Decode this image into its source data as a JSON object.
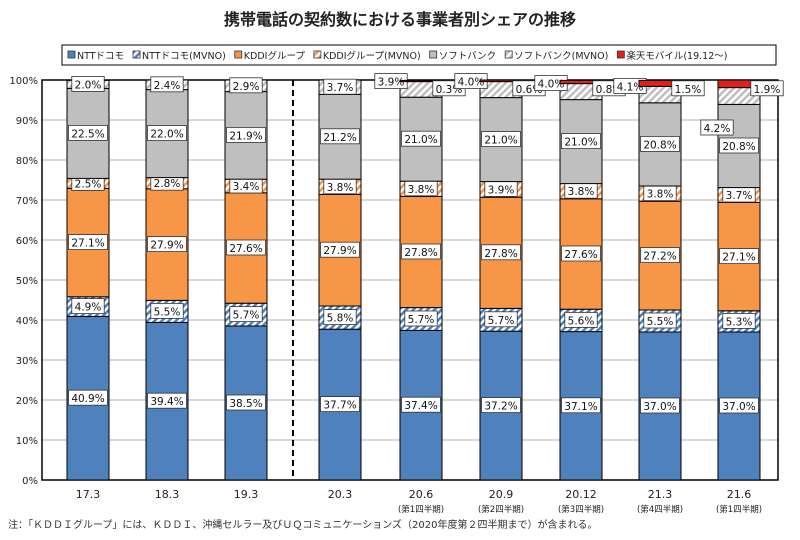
{
  "chart_data": {
    "type": "bar",
    "stacked": true,
    "title": "携帯電話の契約数における事業者別シェアの推移",
    "categories": [
      "17.3",
      "18.3",
      "19.3",
      "20.3",
      "20.6",
      "20.9",
      "20.12",
      "21.3",
      "21.6"
    ],
    "sub_labels": [
      "",
      "",
      "",
      "",
      "(第1四半期)",
      "(第2四半期)",
      "(第3四半期)",
      "(第4四半期)",
      "(第1四半期)"
    ],
    "ylim": [
      0,
      100
    ],
    "yticks": [
      "0%",
      "10%",
      "20%",
      "30%",
      "40%",
      "50%",
      "60%",
      "70%",
      "80%",
      "90%",
      "100%"
    ],
    "grid": true,
    "legend_position": "top",
    "series": [
      {
        "name": "NTTドコモ",
        "color": "#4F81BD",
        "values": [
          40.9,
          39.4,
          38.5,
          37.7,
          37.4,
          37.2,
          37.1,
          37.0,
          37.0
        ]
      },
      {
        "name": "NTTドコモ(MVNO)",
        "color": "#4F81BD",
        "hatched": true,
        "values": [
          4.9,
          5.5,
          5.7,
          5.8,
          5.7,
          5.7,
          5.6,
          5.5,
          5.3
        ]
      },
      {
        "name": "KDDIグループ",
        "color": "#F79646",
        "values": [
          27.1,
          27.9,
          27.6,
          27.9,
          27.8,
          27.8,
          27.6,
          27.2,
          27.1
        ]
      },
      {
        "name": "KDDIグループ(MVNO)",
        "color": "#F79646",
        "hatched": true,
        "values": [
          2.5,
          2.8,
          3.4,
          3.8,
          3.8,
          3.9,
          3.8,
          3.8,
          3.7
        ]
      },
      {
        "name": "ソフトバンク",
        "color": "#BFBFBF",
        "values": [
          22.5,
          22.0,
          21.9,
          21.2,
          21.0,
          21.0,
          21.0,
          20.8,
          20.8
        ]
      },
      {
        "name": "ソフトバンク(MVNO)",
        "color": "#BFBFBF",
        "hatched": true,
        "values": [
          2.0,
          2.4,
          2.9,
          3.7,
          3.9,
          4.0,
          4.0,
          4.1,
          4.2
        ]
      },
      {
        "name": "楽天モバイル(19.12～)",
        "color": "#E02020",
        "values": [
          null,
          null,
          null,
          null,
          0.3,
          0.6,
          0.8,
          1.5,
          1.9
        ]
      }
    ]
  },
  "note": "注：「ＫＤＤＩグループ」には、ＫＤＤＩ、沖縄セルラー及びＵＱコミュニケーションズ（2020年度第２四半期まで）が含まれる。"
}
